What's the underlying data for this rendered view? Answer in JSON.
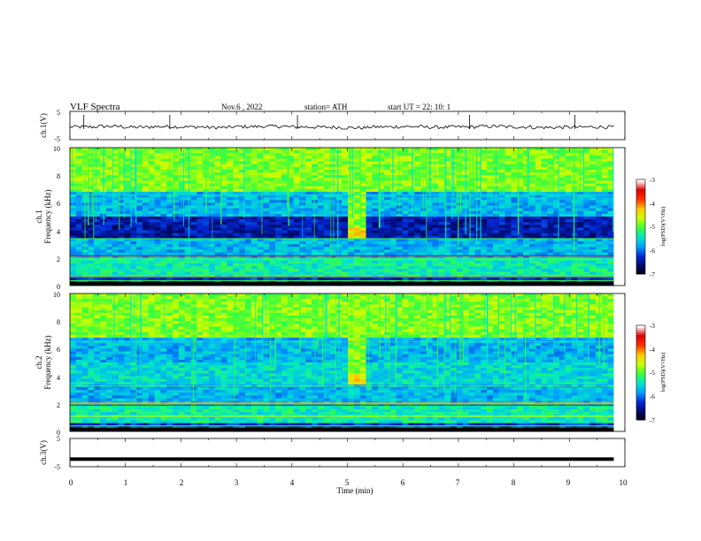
{
  "header": {
    "title": "VLF  Spectra",
    "date": "Nov.6   , 2022",
    "station": "station= ATH",
    "start": "start  UT  =    22: 10: 1"
  },
  "colors": {
    "spectrogram_scale": [
      "#000000",
      "#000a6e",
      "#0028d2",
      "#00a0ff",
      "#00e6c8",
      "#3cff3c",
      "#c8ff00",
      "#ffc800",
      "#ff3200",
      "#dc0000",
      "#ffffff"
    ]
  },
  "chart_data": [
    {
      "id": "ch1-waveform",
      "type": "line",
      "ylabel": "ch.1(V)",
      "yticks": [
        "5",
        "-5"
      ],
      "ylim": [
        -5,
        5
      ],
      "xlim": [
        0,
        10
      ],
      "series": [
        {
          "values": [
            -0.5,
            -0.3,
            -0.6,
            -0.4,
            -0.5,
            -0.7,
            -0.4,
            -0.3,
            -0.5,
            -0.6,
            -0.8,
            -0.5,
            -0.4,
            -0.6,
            -0.5,
            -0.3,
            -0.5,
            -0.7,
            -0.6,
            -0.5
          ]
        }
      ]
    },
    {
      "id": "ch1-spectrogram",
      "type": "heatmap",
      "ylabel": "ch.1",
      "ylabel2": "Frequency  (kHz)",
      "yticks": [
        "10",
        "8",
        "6",
        "4",
        "2",
        "0"
      ],
      "ylim": [
        0,
        10
      ],
      "xlim": [
        0,
        10
      ],
      "colorbar": {
        "label": "log(PSD)(V²/Hz)",
        "ticks": [
          "-3",
          "-4",
          "-5",
          "-6",
          "-7"
        ],
        "range": [
          -7,
          -3
        ]
      }
    },
    {
      "id": "ch2-spectrogram",
      "type": "heatmap",
      "ylabel": "ch.2",
      "ylabel2": "Frequency  (kHz)",
      "yticks": [
        "10",
        "8",
        "6",
        "4",
        "2",
        "0"
      ],
      "ylim": [
        0,
        10
      ],
      "xlim": [
        0,
        10
      ],
      "colorbar": {
        "label": "log(PSD)(V²/Hz)",
        "ticks": [
          "-3",
          "-4",
          "-5",
          "-6",
          "-7"
        ],
        "range": [
          -7,
          -3
        ]
      }
    },
    {
      "id": "ch3-waveform",
      "type": "line",
      "ylabel": "ch.3(V)",
      "yticks": [
        "5",
        "-5"
      ],
      "ylim": [
        -5,
        5
      ],
      "xlim": [
        0,
        10
      ],
      "series": [
        {
          "values": [
            -2.3,
            -2.3
          ]
        }
      ]
    }
  ],
  "xaxis": {
    "label": "Time  (min)",
    "ticks": [
      "0",
      "1",
      "2",
      "3",
      "4",
      "5",
      "6",
      "7",
      "8",
      "9",
      "10"
    ],
    "range": [
      0,
      10
    ]
  }
}
